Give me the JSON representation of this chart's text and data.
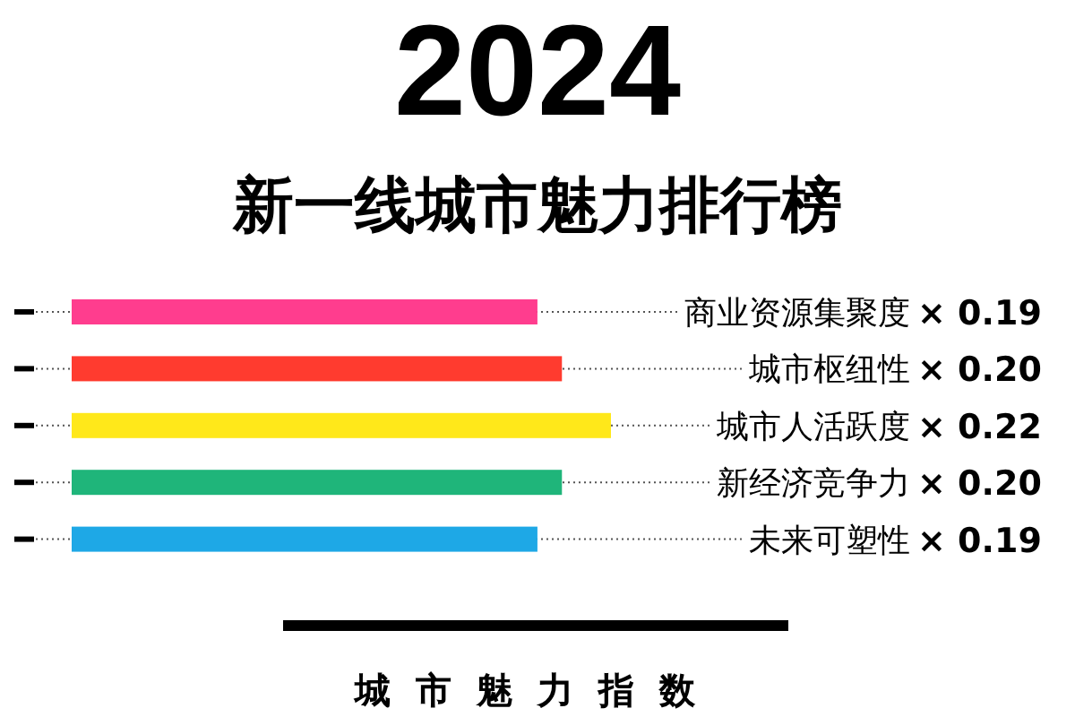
{
  "chart_data": {
    "type": "bar",
    "orientation": "horizontal",
    "title": "2024",
    "subtitle": "新一线城市魅力排行榜",
    "xlabel": "城市魅力指数",
    "categories": [
      "商业资源集聚度",
      "城市枢纽性",
      "城市人活跃度",
      "新经济竞争力",
      "未来可塑性"
    ],
    "values": [
      0.19,
      0.2,
      0.22,
      0.2,
      0.19
    ],
    "value_labels": [
      "× 0.19",
      "× 0.20",
      "× 0.22",
      "× 0.20",
      "× 0.19"
    ],
    "colors": [
      "#ff3d8e",
      "#ff3b2f",
      "#ffe81a",
      "#1fb57a",
      "#1ea8e6"
    ]
  }
}
